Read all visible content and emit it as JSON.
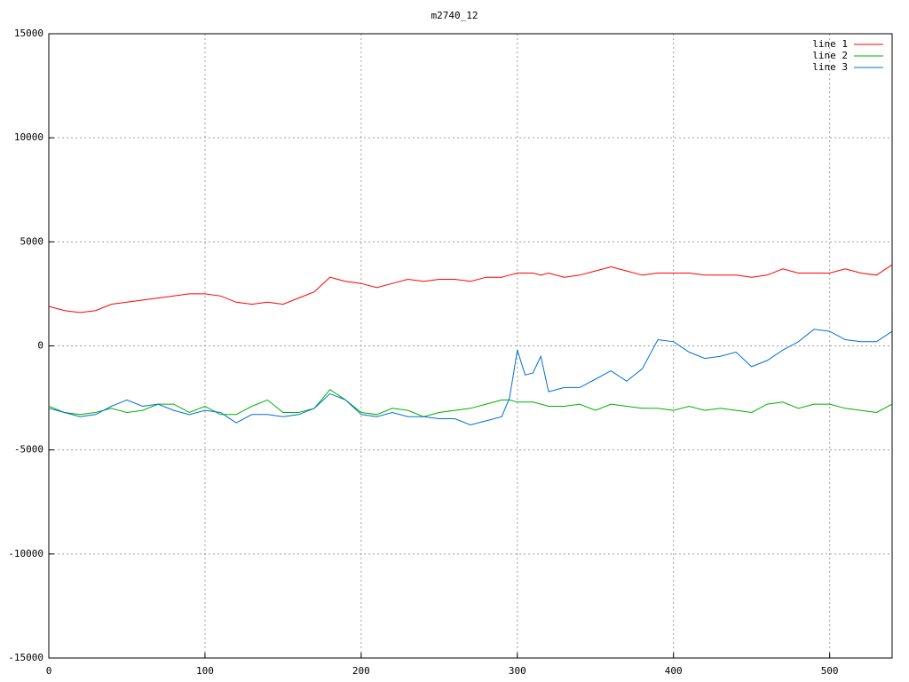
{
  "chart_data": {
    "type": "line",
    "title": "m2740_12",
    "x": [
      0,
      10,
      20,
      30,
      40,
      50,
      60,
      70,
      80,
      90,
      100,
      110,
      120,
      130,
      140,
      150,
      160,
      170,
      180,
      190,
      200,
      210,
      220,
      230,
      240,
      250,
      260,
      270,
      280,
      290,
      295,
      300,
      305,
      310,
      315,
      320,
      330,
      340,
      350,
      360,
      370,
      380,
      390,
      400,
      410,
      420,
      430,
      440,
      450,
      460,
      470,
      480,
      490,
      500,
      510,
      520,
      530,
      540
    ],
    "series": [
      {
        "name": "line 1",
        "color": "#ff0000",
        "values": [
          1900,
          1700,
          1600,
          1700,
          2000,
          2100,
          2200,
          2300,
          2400,
          2500,
          2500,
          2400,
          2100,
          2000,
          2100,
          2000,
          2300,
          2600,
          3300,
          3100,
          3000,
          2800,
          3000,
          3200,
          3100,
          3200,
          3200,
          3100,
          3300,
          3300,
          3400,
          3500,
          3500,
          3500,
          3400,
          3500,
          3300,
          3400,
          3600,
          3800,
          3600,
          3400,
          3500,
          3500,
          3500,
          3400,
          3400,
          3400,
          3300,
          3400,
          3700,
          3500,
          3500,
          3500,
          3700,
          3500,
          3400,
          3900
        ]
      },
      {
        "name": "line 2",
        "color": "#00b000",
        "values": [
          -2900,
          -3200,
          -3300,
          -3200,
          -3000,
          -3200,
          -3100,
          -2800,
          -2800,
          -3200,
          -2900,
          -3300,
          -3300,
          -2900,
          -2600,
          -3200,
          -3200,
          -3000,
          -2100,
          -2600,
          -3200,
          -3300,
          -3000,
          -3100,
          -3400,
          -3200,
          -3100,
          -3000,
          -2800,
          -2600,
          -2600,
          -2700,
          -2700,
          -2700,
          -2800,
          -2900,
          -2900,
          -2800,
          -3100,
          -2800,
          -2900,
          -3000,
          -3000,
          -3100,
          -2900,
          -3100,
          -3000,
          -3100,
          -3200,
          -2800,
          -2700,
          -3000,
          -2800,
          -2800,
          -3000,
          -3100,
          -3200,
          -2800
        ]
      },
      {
        "name": "line 3",
        "color": "#0070d0",
        "values": [
          -3000,
          -3200,
          -3400,
          -3300,
          -2900,
          -2600,
          -2900,
          -2800,
          -3100,
          -3300,
          -3100,
          -3200,
          -3700,
          -3300,
          -3300,
          -3400,
          -3300,
          -3000,
          -2300,
          -2600,
          -3300,
          -3400,
          -3200,
          -3400,
          -3400,
          -3500,
          -3500,
          -3800,
          -3600,
          -3400,
          -2500,
          -200,
          -1400,
          -1300,
          -500,
          -2200,
          -2000,
          -2000,
          -1600,
          -1200,
          -1700,
          -1100,
          300,
          200,
          -300,
          -600,
          -500,
          -300,
          -1000,
          -700,
          -200,
          200,
          800,
          700,
          300,
          200,
          200,
          700
        ]
      }
    ],
    "xlim": [
      0,
      540
    ],
    "ylim": [
      -15000,
      15000
    ],
    "xticks": [
      0,
      100,
      200,
      300,
      400,
      500
    ],
    "yticks": [
      -15000,
      -10000,
      -5000,
      0,
      5000,
      10000,
      15000
    ],
    "grid": true,
    "legend": "top-right"
  }
}
